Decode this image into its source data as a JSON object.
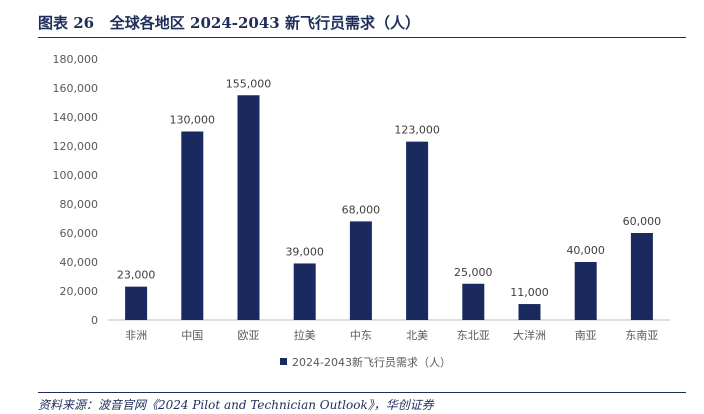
{
  "figure": {
    "label": "图表 26",
    "title": "全球各地区 2024-2043 新飞行员需求（人）"
  },
  "source": "资料来源：波音官网《2024 Pilot and Technician Outlook》，华创证券",
  "colors": {
    "bar": "#1b2a5e",
    "rule": "#1f2d5a",
    "axis": "#bfbfbf"
  },
  "chart_data": {
    "type": "bar",
    "title": "",
    "xlabel": "",
    "ylabel": "",
    "ylim": [
      0,
      180000
    ],
    "yticks": [
      0,
      20000,
      40000,
      60000,
      80000,
      100000,
      120000,
      140000,
      160000,
      180000
    ],
    "ytick_labels": [
      "0",
      "20,000",
      "40,000",
      "60,000",
      "80,000",
      "100,000",
      "120,000",
      "140,000",
      "160,000",
      "180,000"
    ],
    "categories": [
      "非洲",
      "中国",
      "欧亚",
      "拉美",
      "中东",
      "北美",
      "东北亚",
      "大洋洲",
      "南亚",
      "东南亚"
    ],
    "series": [
      {
        "name": "2024-2043新飞行员需求（人）",
        "values": [
          23000,
          130000,
          155000,
          39000,
          68000,
          123000,
          25000,
          11000,
          40000,
          60000
        ],
        "value_labels": [
          "23,000",
          "130,000",
          "155,000",
          "39,000",
          "68,000",
          "123,000",
          "25,000",
          "11,000",
          "40,000",
          "60,000"
        ]
      }
    ],
    "legend_position": "bottom-center",
    "grid": false
  }
}
